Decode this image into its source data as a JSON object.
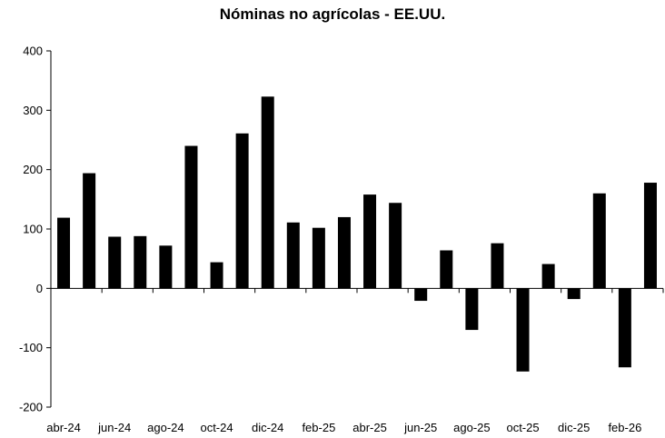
{
  "chart_data": {
    "type": "bar",
    "title": "Nóminas no agrícolas - EE.UU.",
    "categories": [
      "abr-24",
      "may-24",
      "jun-24",
      "jul-24",
      "ago-24",
      "sep-24",
      "oct-24",
      "nov-24",
      "dic-24",
      "ene-25",
      "feb-25",
      "mar-25",
      "abr-25",
      "may-25",
      "jun-25",
      "jul-25",
      "ago-25",
      "sep-25",
      "oct-25",
      "nov-25",
      "dic-25",
      "ene-26",
      "feb-26",
      "mar-26"
    ],
    "shown_tick_labels": [
      "abr-24",
      "jun-24",
      "ago-24",
      "oct-24",
      "dic-24",
      "feb-25",
      "abr-25",
      "jun-25",
      "ago-25",
      "oct-25",
      "dic-25",
      "feb-26"
    ],
    "values": [
      119,
      194,
      87,
      88,
      72,
      240,
      44,
      261,
      323,
      111,
      102,
      120,
      158,
      144,
      -21,
      64,
      -70,
      76,
      -140,
      41,
      -18,
      160,
      -133,
      178
    ],
    "ylim": [
      -200,
      400
    ],
    "yticks": [
      -200,
      -100,
      0,
      100,
      200,
      300,
      400
    ],
    "xlabel": "",
    "ylabel": "",
    "grid": false,
    "bar_color": "#000000"
  }
}
